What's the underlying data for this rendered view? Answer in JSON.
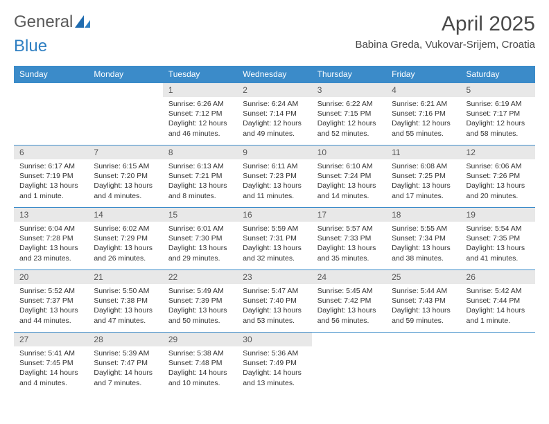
{
  "logo": {
    "word1": "General",
    "word2": "Blue"
  },
  "title": "April 2025",
  "location": "Babina Greda, Vukovar-Srijem, Croatia",
  "colors": {
    "header_bg": "#3b8bc9",
    "header_text": "#ffffff",
    "daynum_bg": "#e8e8e8",
    "border": "#3b8bc9",
    "logo_gray": "#5a5a5a",
    "logo_blue": "#2f7fc2"
  },
  "typography": {
    "title_fontsize": 30,
    "location_fontsize": 15,
    "header_fontsize": 12,
    "daynum_fontsize": 12,
    "body_fontsize": 10.5
  },
  "dayHeaders": [
    "Sunday",
    "Monday",
    "Tuesday",
    "Wednesday",
    "Thursday",
    "Friday",
    "Saturday"
  ],
  "weeks": [
    [
      null,
      null,
      {
        "n": "1",
        "sunrise": "6:26 AM",
        "sunset": "7:12 PM",
        "daylight": "12 hours and 46 minutes."
      },
      {
        "n": "2",
        "sunrise": "6:24 AM",
        "sunset": "7:14 PM",
        "daylight": "12 hours and 49 minutes."
      },
      {
        "n": "3",
        "sunrise": "6:22 AM",
        "sunset": "7:15 PM",
        "daylight": "12 hours and 52 minutes."
      },
      {
        "n": "4",
        "sunrise": "6:21 AM",
        "sunset": "7:16 PM",
        "daylight": "12 hours and 55 minutes."
      },
      {
        "n": "5",
        "sunrise": "6:19 AM",
        "sunset": "7:17 PM",
        "daylight": "12 hours and 58 minutes."
      }
    ],
    [
      {
        "n": "6",
        "sunrise": "6:17 AM",
        "sunset": "7:19 PM",
        "daylight": "13 hours and 1 minute."
      },
      {
        "n": "7",
        "sunrise": "6:15 AM",
        "sunset": "7:20 PM",
        "daylight": "13 hours and 4 minutes."
      },
      {
        "n": "8",
        "sunrise": "6:13 AM",
        "sunset": "7:21 PM",
        "daylight": "13 hours and 8 minutes."
      },
      {
        "n": "9",
        "sunrise": "6:11 AM",
        "sunset": "7:23 PM",
        "daylight": "13 hours and 11 minutes."
      },
      {
        "n": "10",
        "sunrise": "6:10 AM",
        "sunset": "7:24 PM",
        "daylight": "13 hours and 14 minutes."
      },
      {
        "n": "11",
        "sunrise": "6:08 AM",
        "sunset": "7:25 PM",
        "daylight": "13 hours and 17 minutes."
      },
      {
        "n": "12",
        "sunrise": "6:06 AM",
        "sunset": "7:26 PM",
        "daylight": "13 hours and 20 minutes."
      }
    ],
    [
      {
        "n": "13",
        "sunrise": "6:04 AM",
        "sunset": "7:28 PM",
        "daylight": "13 hours and 23 minutes."
      },
      {
        "n": "14",
        "sunrise": "6:02 AM",
        "sunset": "7:29 PM",
        "daylight": "13 hours and 26 minutes."
      },
      {
        "n": "15",
        "sunrise": "6:01 AM",
        "sunset": "7:30 PM",
        "daylight": "13 hours and 29 minutes."
      },
      {
        "n": "16",
        "sunrise": "5:59 AM",
        "sunset": "7:31 PM",
        "daylight": "13 hours and 32 minutes."
      },
      {
        "n": "17",
        "sunrise": "5:57 AM",
        "sunset": "7:33 PM",
        "daylight": "13 hours and 35 minutes."
      },
      {
        "n": "18",
        "sunrise": "5:55 AM",
        "sunset": "7:34 PM",
        "daylight": "13 hours and 38 minutes."
      },
      {
        "n": "19",
        "sunrise": "5:54 AM",
        "sunset": "7:35 PM",
        "daylight": "13 hours and 41 minutes."
      }
    ],
    [
      {
        "n": "20",
        "sunrise": "5:52 AM",
        "sunset": "7:37 PM",
        "daylight": "13 hours and 44 minutes."
      },
      {
        "n": "21",
        "sunrise": "5:50 AM",
        "sunset": "7:38 PM",
        "daylight": "13 hours and 47 minutes."
      },
      {
        "n": "22",
        "sunrise": "5:49 AM",
        "sunset": "7:39 PM",
        "daylight": "13 hours and 50 minutes."
      },
      {
        "n": "23",
        "sunrise": "5:47 AM",
        "sunset": "7:40 PM",
        "daylight": "13 hours and 53 minutes."
      },
      {
        "n": "24",
        "sunrise": "5:45 AM",
        "sunset": "7:42 PM",
        "daylight": "13 hours and 56 minutes."
      },
      {
        "n": "25",
        "sunrise": "5:44 AM",
        "sunset": "7:43 PM",
        "daylight": "13 hours and 59 minutes."
      },
      {
        "n": "26",
        "sunrise": "5:42 AM",
        "sunset": "7:44 PM",
        "daylight": "14 hours and 1 minute."
      }
    ],
    [
      {
        "n": "27",
        "sunrise": "5:41 AM",
        "sunset": "7:45 PM",
        "daylight": "14 hours and 4 minutes."
      },
      {
        "n": "28",
        "sunrise": "5:39 AM",
        "sunset": "7:47 PM",
        "daylight": "14 hours and 7 minutes."
      },
      {
        "n": "29",
        "sunrise": "5:38 AM",
        "sunset": "7:48 PM",
        "daylight": "14 hours and 10 minutes."
      },
      {
        "n": "30",
        "sunrise": "5:36 AM",
        "sunset": "7:49 PM",
        "daylight": "14 hours and 13 minutes."
      },
      null,
      null,
      null
    ]
  ],
  "labels": {
    "sunrise": "Sunrise:",
    "sunset": "Sunset:",
    "daylight": "Daylight:"
  }
}
